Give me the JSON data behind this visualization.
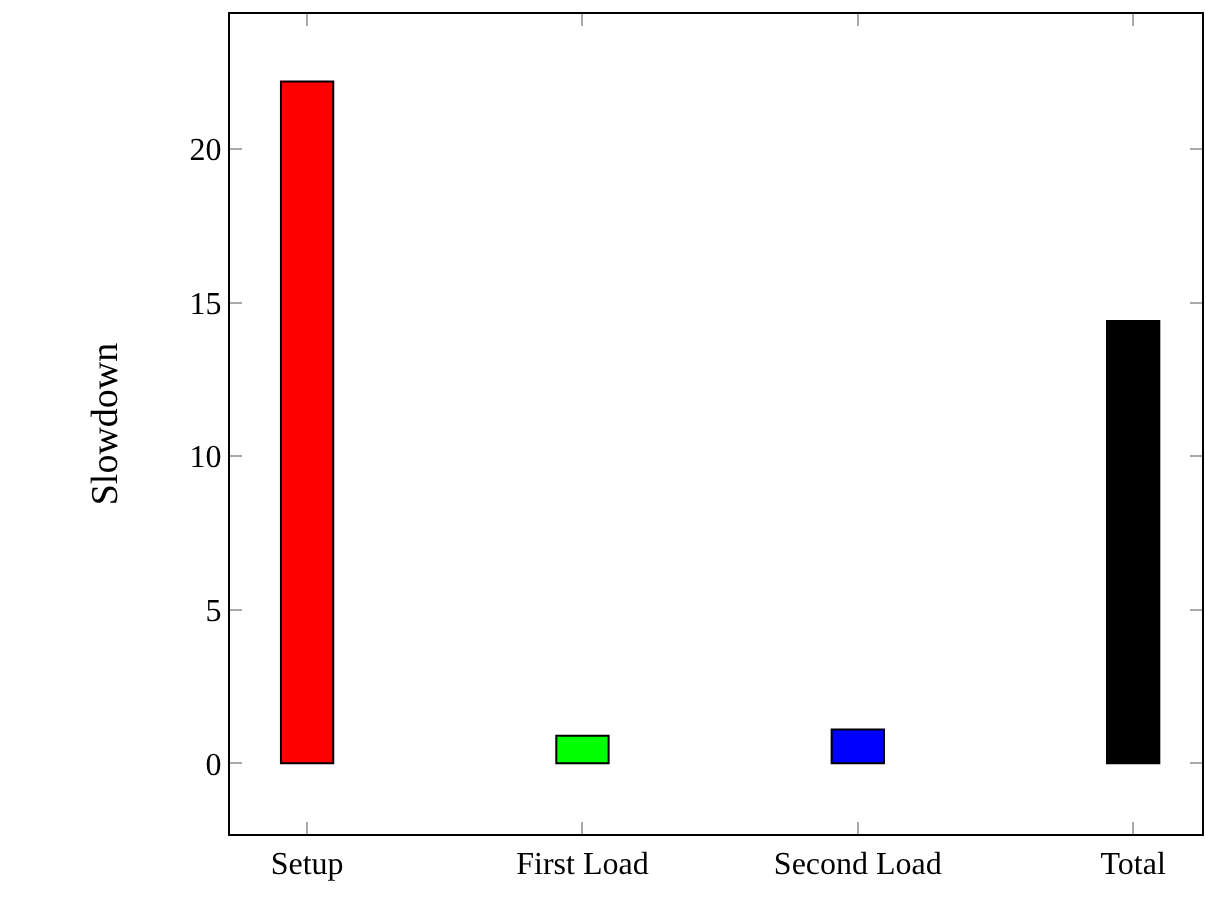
{
  "chart_data": {
    "type": "bar",
    "ylabel": "Slowdown",
    "categories": [
      "Setup",
      "First Load",
      "Second Load",
      "Total"
    ],
    "values": [
      22.2,
      0.9,
      1.1,
      14.4
    ],
    "colors": [
      "#ff0000",
      "#00ff00",
      "#0000ff",
      "#000000"
    ],
    "ylim": [
      -2.3,
      24.4
    ],
    "yticks": [
      0,
      5,
      10,
      15,
      20
    ],
    "grid": false,
    "legend": false
  }
}
